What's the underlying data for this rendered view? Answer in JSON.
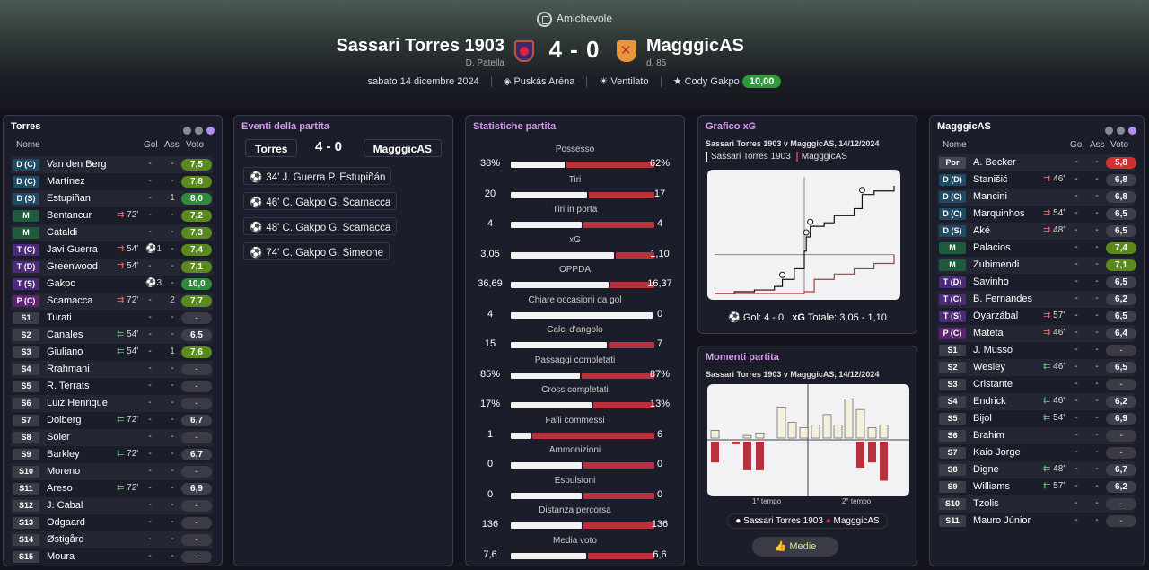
{
  "header": {
    "competition": "Amichevole",
    "home_team": "Sassari Torres 1903",
    "home_sub": "D. Patella",
    "away_team": "MagggicAS",
    "away_sub": "d. 85",
    "score": "4 - 0",
    "date": "sabato 14 dicembre 2024",
    "stadium": "Puskás Aréna",
    "weather": "Ventilato",
    "pom_name": "Cody Gakpo",
    "pom_rating": "10,00"
  },
  "home_panel": {
    "title": "Torres",
    "cols": {
      "name": "Nome",
      "gol": "Gol",
      "ass": "Ass",
      "voto": "Voto"
    },
    "players": [
      {
        "pos": "D (C)",
        "cls": "d",
        "name": "Van den Berg",
        "sub": "",
        "gol": "-",
        "ass": "-",
        "voto": "7,5",
        "vc": "g2"
      },
      {
        "pos": "D (C)",
        "cls": "d",
        "name": "Martínez",
        "sub": "",
        "gol": "-",
        "ass": "-",
        "voto": "7,8",
        "vc": "g2"
      },
      {
        "pos": "D (S)",
        "cls": "d",
        "name": "Estupiñan",
        "sub": "",
        "gol": "-",
        "ass": "1",
        "voto": "8,0",
        "vc": "g1"
      },
      {
        "pos": "M",
        "cls": "m",
        "name": "Bentancur",
        "sub": "72'",
        "subdir": "out",
        "gol": "-",
        "ass": "-",
        "voto": "7,2",
        "vc": "g2"
      },
      {
        "pos": "M",
        "cls": "m",
        "name": "Cataldi",
        "sub": "",
        "gol": "-",
        "ass": "-",
        "voto": "7,3",
        "vc": "g2"
      },
      {
        "pos": "T (C)",
        "cls": "t",
        "name": "Javi Guerra",
        "sub": "54'",
        "subdir": "out",
        "gol": "⚽1",
        "ass": "-",
        "voto": "7,4",
        "vc": "g2"
      },
      {
        "pos": "T (D)",
        "cls": "t",
        "name": "Greenwood",
        "sub": "54'",
        "subdir": "out",
        "gol": "-",
        "ass": "-",
        "voto": "7,1",
        "vc": "g2"
      },
      {
        "pos": "T (S)",
        "cls": "t",
        "name": "Gakpo",
        "sub": "",
        "gol": "⚽3",
        "ass": "-",
        "voto": "10,0",
        "vc": "g1"
      },
      {
        "pos": "P (C)",
        "cls": "p",
        "name": "Scamacca",
        "sub": "72'",
        "subdir": "out",
        "gol": "-",
        "ass": "2",
        "voto": "7,7",
        "vc": "g2"
      },
      {
        "pos": "S1",
        "cls": "s",
        "name": "Turati",
        "sub": "",
        "gol": "-",
        "ass": "-",
        "voto": "-",
        "vc": "nl"
      },
      {
        "pos": "S2",
        "cls": "s",
        "name": "Canales",
        "sub": "54'",
        "subdir": "in",
        "gol": "-",
        "ass": "-",
        "voto": "6,5",
        "vc": "gr"
      },
      {
        "pos": "S3",
        "cls": "s",
        "name": "Giuliano",
        "sub": "54'",
        "subdir": "in",
        "gol": "-",
        "ass": "1",
        "voto": "7,6",
        "vc": "g2"
      },
      {
        "pos": "S4",
        "cls": "s",
        "name": "Rrahmani",
        "sub": "",
        "gol": "-",
        "ass": "-",
        "voto": "-",
        "vc": "nl"
      },
      {
        "pos": "S5",
        "cls": "s",
        "name": "R. Terrats",
        "sub": "",
        "gol": "-",
        "ass": "-",
        "voto": "-",
        "vc": "nl"
      },
      {
        "pos": "S6",
        "cls": "s",
        "name": "Luiz Henrique",
        "sub": "",
        "gol": "-",
        "ass": "-",
        "voto": "-",
        "vc": "nl"
      },
      {
        "pos": "S7",
        "cls": "s",
        "name": "Dolberg",
        "sub": "72'",
        "subdir": "in",
        "gol": "-",
        "ass": "-",
        "voto": "6,7",
        "vc": "gr"
      },
      {
        "pos": "S8",
        "cls": "s",
        "name": "Soler",
        "sub": "",
        "gol": "-",
        "ass": "-",
        "voto": "-",
        "vc": "nl"
      },
      {
        "pos": "S9",
        "cls": "s",
        "name": "Barkley",
        "sub": "72'",
        "subdir": "in",
        "gol": "-",
        "ass": "-",
        "voto": "6,7",
        "vc": "gr"
      },
      {
        "pos": "S10",
        "cls": "s",
        "name": "Moreno",
        "sub": "",
        "gol": "-",
        "ass": "-",
        "voto": "-",
        "vc": "nl"
      },
      {
        "pos": "S11",
        "cls": "s",
        "name": "Areso",
        "sub": "72'",
        "subdir": "in",
        "gol": "-",
        "ass": "-",
        "voto": "6,9",
        "vc": "gr"
      },
      {
        "pos": "S12",
        "cls": "s",
        "name": "J. Cabal",
        "sub": "",
        "gol": "-",
        "ass": "-",
        "voto": "-",
        "vc": "nl"
      },
      {
        "pos": "S13",
        "cls": "s",
        "name": "Odgaard",
        "sub": "",
        "gol": "-",
        "ass": "-",
        "voto": "-",
        "vc": "nl"
      },
      {
        "pos": "S14",
        "cls": "s",
        "name": "Østigård",
        "sub": "",
        "gol": "-",
        "ass": "-",
        "voto": "-",
        "vc": "nl"
      },
      {
        "pos": "S15",
        "cls": "s",
        "name": "Moura",
        "sub": "",
        "gol": "-",
        "ass": "-",
        "voto": "-",
        "vc": "nl"
      }
    ]
  },
  "events": {
    "title": "Eventi della partita",
    "home": "Torres",
    "score": "4 - 0",
    "away": "MagggicAS",
    "items": [
      "34' J. Guerra P. Estupiñán",
      "46' C. Gakpo G. Scamacca",
      "48' C. Gakpo G. Scamacca",
      "74' C. Gakpo G. Simeone"
    ]
  },
  "stats": {
    "title": "Statistiche partita",
    "items": [
      {
        "label": "Possesso",
        "l": "38%",
        "r": "62%",
        "lf": 0.38,
        "rf": 0.62
      },
      {
        "label": "Tiri",
        "l": "20",
        "r": "17",
        "lf": 0.54,
        "rf": 0.46
      },
      {
        "label": "Tiri in porta",
        "l": "4",
        "r": "4",
        "lf": 0.5,
        "rf": 0.5
      },
      {
        "label": "xG",
        "l": "3,05",
        "r": "1,10",
        "lf": 0.73,
        "rf": 0.27
      },
      {
        "label": "OPPDA",
        "l": "36,69",
        "r": "16,37",
        "lf": 0.69,
        "rf": 0.31
      },
      {
        "label": "Chiare occasioni da gol",
        "l": "4",
        "r": "0",
        "lf": 1.0,
        "rf": 0.0
      },
      {
        "label": "Calci d'angolo",
        "l": "15",
        "r": "7",
        "lf": 0.68,
        "rf": 0.32
      },
      {
        "label": "Passaggi completati",
        "l": "85%",
        "r": "87%",
        "lf": 0.49,
        "rf": 0.51
      },
      {
        "label": "Cross completati",
        "l": "17%",
        "r": "13%",
        "lf": 0.57,
        "rf": 0.43
      },
      {
        "label": "Falli commessi",
        "l": "1",
        "r": "6",
        "lf": 0.14,
        "rf": 0.86
      },
      {
        "label": "Ammonizioni",
        "l": "0",
        "r": "0",
        "lf": 0.5,
        "rf": 0.5
      },
      {
        "label": "Espulsioni",
        "l": "0",
        "r": "0",
        "lf": 0.5,
        "rf": 0.5
      },
      {
        "label": "Distanza percorsa",
        "l": "136",
        "r": "136",
        "lf": 0.5,
        "rf": 0.5
      },
      {
        "label": "Media voto",
        "l": "7,6",
        "r": "6,6",
        "lf": 0.53,
        "rf": 0.47
      }
    ]
  },
  "xg": {
    "title": "Grafico xG",
    "subtitle": "Sassari Torres 1903 v MagggicAS, 14/12/2024",
    "legend_home": "Sassari Torres 1903",
    "legend_away": "MagggicAS",
    "footer_gol": "Gol: 4 - 0",
    "footer_xg_label": "xG",
    "footer_xg": "Totale: 3,05 - 1,10"
  },
  "moments": {
    "title": "Momenti partita",
    "subtitle": "Sassari Torres 1903 v MagggicAS, 14/12/2024",
    "half1": "1° tempo",
    "half2": "2° tempo",
    "legend_home": "Sassari Torres 1903",
    "legend_away": "MagggicAS",
    "button": "Medie"
  },
  "away_panel": {
    "title": "MagggicAS",
    "cols": {
      "name": "Nome",
      "gol": "Gol",
      "ass": "Ass",
      "voto": "Voto"
    },
    "players": [
      {
        "pos": "Por",
        "cls": "por",
        "name": "A. Becker",
        "sub": "",
        "gol": "-",
        "ass": "-",
        "voto": "5,8",
        "vc": "rd"
      },
      {
        "pos": "D (D)",
        "cls": "d",
        "name": "Stanišić",
        "sub": "46'",
        "subdir": "out",
        "gol": "-",
        "ass": "-",
        "voto": "6,8",
        "vc": "gr"
      },
      {
        "pos": "D (C)",
        "cls": "d",
        "name": "Mancini",
        "sub": "",
        "gol": "-",
        "ass": "-",
        "voto": "6,8",
        "vc": "gr"
      },
      {
        "pos": "D (C)",
        "cls": "d",
        "name": "Marquinhos",
        "sub": "54'",
        "subdir": "out",
        "gol": "-",
        "ass": "-",
        "voto": "6,5",
        "vc": "gr"
      },
      {
        "pos": "D (S)",
        "cls": "d",
        "name": "Aké",
        "sub": "48'",
        "subdir": "out",
        "gol": "-",
        "ass": "-",
        "voto": "6,5",
        "vc": "gr"
      },
      {
        "pos": "M",
        "cls": "m",
        "name": "Palacios",
        "sub": "",
        "gol": "-",
        "ass": "-",
        "voto": "7,4",
        "vc": "g2"
      },
      {
        "pos": "M",
        "cls": "m",
        "name": "Zubimendi",
        "sub": "",
        "gol": "-",
        "ass": "-",
        "voto": "7,1",
        "vc": "g2"
      },
      {
        "pos": "T (D)",
        "cls": "t",
        "name": "Savinho",
        "sub": "",
        "gol": "-",
        "ass": "-",
        "voto": "6,5",
        "vc": "gr"
      },
      {
        "pos": "T (C)",
        "cls": "t",
        "name": "B. Fernandes",
        "sub": "",
        "gol": "-",
        "ass": "-",
        "voto": "6,2",
        "vc": "gr"
      },
      {
        "pos": "T (S)",
        "cls": "t",
        "name": "Oyarzábal",
        "sub": "57'",
        "subdir": "out",
        "gol": "-",
        "ass": "-",
        "voto": "6,5",
        "vc": "gr"
      },
      {
        "pos": "P (C)",
        "cls": "p",
        "name": "Mateta",
        "sub": "46'",
        "subdir": "out",
        "gol": "-",
        "ass": "-",
        "voto": "6,4",
        "vc": "gr"
      },
      {
        "pos": "S1",
        "cls": "s",
        "name": "J. Musso",
        "sub": "",
        "gol": "-",
        "ass": "-",
        "voto": "-",
        "vc": "nl"
      },
      {
        "pos": "S2",
        "cls": "s",
        "name": "Wesley",
        "sub": "46'",
        "subdir": "in",
        "gol": "-",
        "ass": "-",
        "voto": "6,5",
        "vc": "gr"
      },
      {
        "pos": "S3",
        "cls": "s",
        "name": "Cristante",
        "sub": "",
        "gol": "-",
        "ass": "-",
        "voto": "-",
        "vc": "nl"
      },
      {
        "pos": "S4",
        "cls": "s",
        "name": "Endrick",
        "sub": "46'",
        "subdir": "in",
        "gol": "-",
        "ass": "-",
        "voto": "6,2",
        "vc": "gr"
      },
      {
        "pos": "S5",
        "cls": "s",
        "name": "Bijol",
        "sub": "54'",
        "subdir": "in",
        "gol": "-",
        "ass": "-",
        "voto": "6,9",
        "vc": "gr"
      },
      {
        "pos": "S6",
        "cls": "s",
        "name": "Brahim",
        "sub": "",
        "gol": "-",
        "ass": "-",
        "voto": "-",
        "vc": "nl"
      },
      {
        "pos": "S7",
        "cls": "s",
        "name": "Kaio Jorge",
        "sub": "",
        "gol": "-",
        "ass": "-",
        "voto": "-",
        "vc": "nl"
      },
      {
        "pos": "S8",
        "cls": "s",
        "name": "Digne",
        "sub": "48'",
        "subdir": "in",
        "gol": "-",
        "ass": "-",
        "voto": "6,7",
        "vc": "gr"
      },
      {
        "pos": "S9",
        "cls": "s",
        "name": "Williams",
        "sub": "57'",
        "subdir": "in",
        "gol": "-",
        "ass": "-",
        "voto": "6,2",
        "vc": "gr"
      },
      {
        "pos": "S10",
        "cls": "s",
        "name": "Tzolis",
        "sub": "",
        "gol": "-",
        "ass": "-",
        "voto": "-",
        "vc": "nl"
      },
      {
        "pos": "S11",
        "cls": "s",
        "name": "Mauro Júnior",
        "sub": "",
        "gol": "-",
        "ass": "-",
        "voto": "-",
        "vc": "nl"
      }
    ]
  },
  "chart_data": [
    {
      "type": "line",
      "title": "Grafico xG",
      "series": [
        {
          "name": "Sassari Torres 1903",
          "x": [
            0,
            10,
            20,
            30,
            34,
            40,
            45,
            46,
            48,
            55,
            60,
            70,
            74,
            80,
            90
          ],
          "y": [
            0,
            0.05,
            0.1,
            0.2,
            0.4,
            0.7,
            1.2,
            1.6,
            1.9,
            2.0,
            2.2,
            2.4,
            2.8,
            2.9,
            3.05
          ]
        },
        {
          "name": "MagggicAS",
          "x": [
            0,
            45,
            50,
            60,
            70,
            80,
            90
          ],
          "y": [
            0,
            0.05,
            0.4,
            0.55,
            0.7,
            0.85,
            1.1
          ]
        }
      ]
    },
    {
      "type": "bar",
      "title": "Momenti partita",
      "series": [
        {
          "name": "Sassari Torres 1903",
          "values": [
            0.15,
            0,
            0.05,
            0.1,
            0,
            0.6,
            0.3,
            0.2,
            0.25,
            0.45,
            0.25,
            0.75,
            0.55,
            0.2,
            0.25
          ]
        },
        {
          "name": "MagggicAS",
          "values": [
            -0.4,
            -0.05,
            -0.55,
            -0.55,
            0,
            0,
            0,
            0,
            0,
            0,
            0,
            0,
            -0.5,
            -0.4,
            -0.75
          ]
        }
      ]
    }
  ]
}
